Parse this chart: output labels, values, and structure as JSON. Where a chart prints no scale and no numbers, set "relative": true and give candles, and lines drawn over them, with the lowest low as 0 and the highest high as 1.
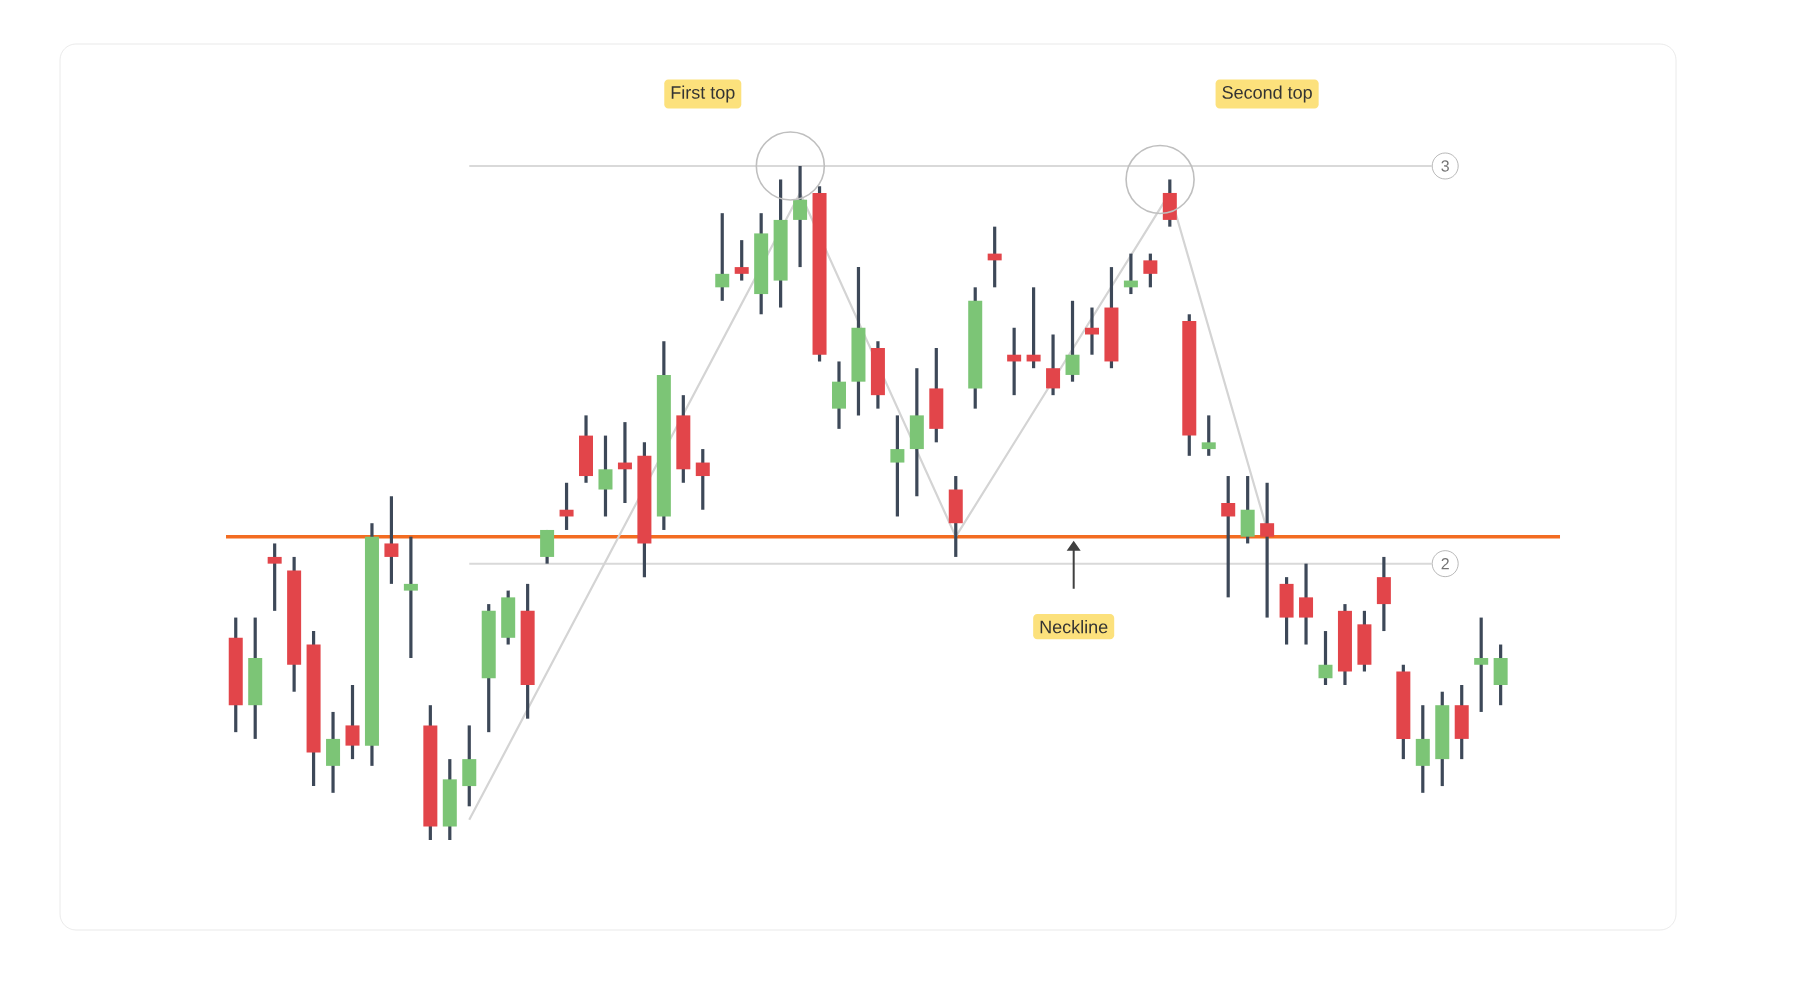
{
  "chart_data": {
    "type": "candlestick",
    "relative": true,
    "categories": [
      null,
      null,
      null,
      null,
      null,
      null,
      null,
      null,
      null,
      null,
      null,
      null,
      null,
      null,
      null,
      null,
      null,
      null,
      null,
      null,
      null,
      null,
      null,
      null,
      null,
      null,
      null,
      null,
      null,
      null,
      null,
      null,
      null,
      null,
      null,
      null,
      null,
      null,
      null,
      null,
      null,
      null,
      null,
      null,
      null,
      null,
      null,
      null,
      null,
      null,
      null,
      null,
      null,
      null,
      null,
      null,
      null,
      null,
      null,
      null,
      null,
      null,
      null,
      null,
      null,
      null
    ],
    "ohlc": [
      [
        0.3,
        0.33,
        0.16,
        0.2
      ],
      [
        0.2,
        0.33,
        0.15,
        0.27
      ],
      [
        0.42,
        0.44,
        0.34,
        0.41
      ],
      [
        0.4,
        0.42,
        0.22,
        0.26
      ],
      [
        0.29,
        0.31,
        0.08,
        0.13
      ],
      [
        0.11,
        0.19,
        0.07,
        0.15
      ],
      [
        0.17,
        0.23,
        0.12,
        0.14
      ],
      [
        0.14,
        0.47,
        0.11,
        0.45
      ],
      [
        0.44,
        0.51,
        0.38,
        0.42
      ],
      [
        0.37,
        0.45,
        0.27,
        0.38
      ],
      [
        0.17,
        0.2,
        0.0,
        0.02
      ],
      [
        0.02,
        0.12,
        0.0,
        0.09
      ],
      [
        0.08,
        0.17,
        0.05,
        0.12
      ],
      [
        0.24,
        0.35,
        0.16,
        0.34
      ],
      [
        0.3,
        0.37,
        0.29,
        0.36
      ],
      [
        0.34,
        0.38,
        0.18,
        0.23
      ],
      [
        0.42,
        0.46,
        0.41,
        0.46
      ],
      [
        0.49,
        0.53,
        0.46,
        0.48
      ],
      [
        0.6,
        0.63,
        0.53,
        0.54
      ],
      [
        0.52,
        0.6,
        0.48,
        0.55
      ],
      [
        0.56,
        0.62,
        0.5,
        0.55
      ],
      [
        0.57,
        0.59,
        0.39,
        0.44
      ],
      [
        0.48,
        0.74,
        0.46,
        0.69
      ],
      [
        0.63,
        0.66,
        0.53,
        0.55
      ],
      [
        0.56,
        0.58,
        0.49,
        0.54
      ],
      [
        0.82,
        0.93,
        0.8,
        0.84
      ],
      [
        0.85,
        0.89,
        0.83,
        0.84
      ],
      [
        0.81,
        0.93,
        0.78,
        0.9
      ],
      [
        0.83,
        0.98,
        0.79,
        0.92
      ],
      [
        0.92,
        1.0,
        0.85,
        0.95
      ],
      [
        0.96,
        0.97,
        0.71,
        0.72
      ],
      [
        0.64,
        0.71,
        0.61,
        0.68
      ],
      [
        0.68,
        0.85,
        0.63,
        0.76
      ],
      [
        0.73,
        0.74,
        0.64,
        0.66
      ],
      [
        0.56,
        0.63,
        0.48,
        0.58
      ],
      [
        0.58,
        0.7,
        0.51,
        0.63
      ],
      [
        0.67,
        0.73,
        0.59,
        0.61
      ],
      [
        0.52,
        0.54,
        0.42,
        0.47
      ],
      [
        0.67,
        0.82,
        0.64,
        0.8
      ],
      [
        0.87,
        0.91,
        0.82,
        0.86
      ],
      [
        0.72,
        0.76,
        0.66,
        0.71
      ],
      [
        0.72,
        0.82,
        0.7,
        0.71
      ],
      [
        0.7,
        0.75,
        0.66,
        0.67
      ],
      [
        0.69,
        0.8,
        0.68,
        0.72
      ],
      [
        0.76,
        0.79,
        0.72,
        0.75
      ],
      [
        0.79,
        0.85,
        0.7,
        0.71
      ],
      [
        0.82,
        0.87,
        0.81,
        0.83
      ],
      [
        0.86,
        0.87,
        0.82,
        0.84
      ],
      [
        0.96,
        0.98,
        0.91,
        0.92
      ],
      [
        0.77,
        0.78,
        0.57,
        0.6
      ],
      [
        0.58,
        0.63,
        0.57,
        0.59
      ],
      [
        0.5,
        0.54,
        0.36,
        0.48
      ],
      [
        0.45,
        0.54,
        0.44,
        0.49
      ],
      [
        0.47,
        0.53,
        0.33,
        0.45
      ],
      [
        0.38,
        0.39,
        0.29,
        0.33
      ],
      [
        0.36,
        0.41,
        0.29,
        0.33
      ],
      [
        0.24,
        0.31,
        0.23,
        0.26
      ],
      [
        0.34,
        0.35,
        0.23,
        0.25
      ],
      [
        0.32,
        0.34,
        0.25,
        0.26
      ],
      [
        0.39,
        0.42,
        0.31,
        0.35
      ],
      [
        0.25,
        0.26,
        0.12,
        0.15
      ],
      [
        0.11,
        0.2,
        0.07,
        0.15
      ],
      [
        0.12,
        0.22,
        0.08,
        0.2
      ],
      [
        0.2,
        0.23,
        0.12,
        0.15
      ],
      [
        0.26,
        0.33,
        0.19,
        0.27
      ],
      [
        0.23,
        0.29,
        0.2,
        0.27
      ]
    ],
    "colors": [
      "#e2454a",
      "#7cc576",
      "#e2454a",
      "#e2454a",
      "#e2454a",
      "#7cc576",
      "#e2454a",
      "#7cc576",
      "#e2454a",
      "#7cc576",
      "#e2454a",
      "#7cc576",
      "#7cc576",
      "#7cc576",
      "#7cc576",
      "#e2454a",
      "#7cc576",
      "#e2454a",
      "#e2454a",
      "#7cc576",
      "#e2454a",
      "#e2454a",
      "#7cc576",
      "#e2454a",
      "#e2454a",
      "#7cc576",
      "#e2454a",
      "#7cc576",
      "#7cc576",
      "#7cc576",
      "#e2454a",
      "#7cc576",
      "#7cc576",
      "#e2454a",
      "#7cc576",
      "#7cc576",
      "#e2454a",
      "#e2454a",
      "#7cc576",
      "#e2454a",
      "#e2454a",
      "#e2454a",
      "#e2454a",
      "#7cc576",
      "#e2454a",
      "#e2454a",
      "#7cc576",
      "#e2454a",
      "#e2454a",
      "#e2454a",
      "#7cc576",
      "#e2454a",
      "#7cc576",
      "#e2454a",
      "#e2454a",
      "#e2454a",
      "#7cc576",
      "#e2454a",
      "#e2454a",
      "#e2454a",
      "#e2454a",
      "#7cc576",
      "#7cc576",
      "#e2454a",
      "#7cc576",
      "#7cc576"
    ],
    "series": [
      {
        "type": "line",
        "color": "#d4d4d4",
        "values": [
          null,
          null,
          null,
          null,
          null,
          null,
          null,
          null,
          null,
          null,
          null,
          null,
          0.03,
          null,
          null,
          null,
          null,
          null,
          null,
          null,
          null,
          null,
          null,
          null,
          null,
          null,
          null,
          null,
          null,
          0.96,
          null,
          null,
          null,
          null,
          null,
          null,
          null,
          0.45,
          null,
          null,
          null,
          null,
          null,
          null,
          null,
          null,
          null,
          null,
          0.96,
          null,
          null,
          null,
          null,
          0.46,
          null,
          null,
          null,
          null,
          null,
          null,
          null,
          null,
          null,
          null,
          null,
          null
        ]
      }
    ],
    "ref_lines": [
      {
        "axis": "y",
        "value": 0.45,
        "color": "#f36c21"
      },
      {
        "axis": "y",
        "value": 0.41,
        "color": "#d9d9d9"
      },
      {
        "axis": "y",
        "value": 1.0,
        "color": "#d9d9d9"
      }
    ],
    "annotations": [
      "First top",
      "Second top",
      "Neckline",
      "2",
      "3"
    ]
  }
}
